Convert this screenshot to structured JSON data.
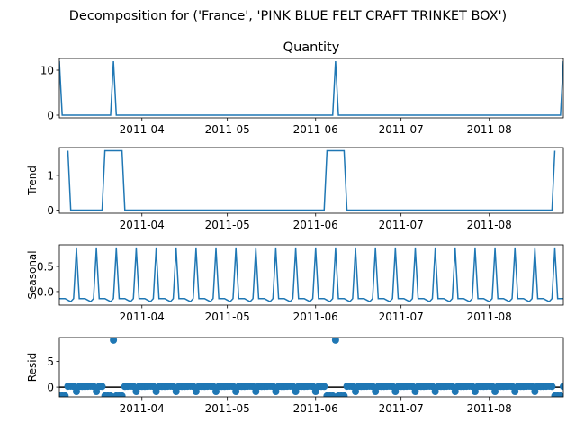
{
  "suptitle": "Decomposition for ('France', 'PINK BLUE FELT CRAFT TRINKET BOX')",
  "colors": {
    "line": "#1f77b4",
    "zero_line": "#000000",
    "axis": "#000000"
  },
  "xaxis": {
    "tick_labels": [
      "2011-04",
      "2011-05",
      "2011-06",
      "2011-07",
      "2011-08"
    ],
    "tick_dates": [
      "2011-04-01",
      "2011-05-01",
      "2011-06-01",
      "2011-07-01",
      "2011-08-01"
    ],
    "range": [
      "2011-03-03",
      "2011-08-27"
    ]
  },
  "chart_data": [
    {
      "type": "line",
      "panel": "observed",
      "title": "Quantity",
      "ylabel": "",
      "ylim": [
        -0.6,
        12.6
      ],
      "yticks": [
        0,
        10
      ],
      "spikes": [
        {
          "date": "2011-03-03",
          "value": 12
        },
        {
          "date": "2011-03-22",
          "value": 12
        },
        {
          "date": "2011-06-08",
          "value": 12
        },
        {
          "date": "2011-08-27",
          "value": 12
        }
      ],
      "baseline": 0
    },
    {
      "type": "line",
      "panel": "trend",
      "title": "",
      "ylabel": "Trend",
      "ylim": [
        -0.09,
        1.8
      ],
      "yticks": [
        0,
        1
      ],
      "x": [
        "2011-03-06",
        "2011-03-07",
        "2011-03-18",
        "2011-03-19",
        "2011-03-25",
        "2011-03-26",
        "2011-06-04",
        "2011-06-05",
        "2011-06-11",
        "2011-06-12",
        "2011-08-23",
        "2011-08-24"
      ],
      "values": [
        1.71,
        0,
        0,
        1.71,
        1.71,
        0,
        0,
        1.71,
        1.71,
        0,
        0,
        1.71
      ]
    },
    {
      "type": "line",
      "panel": "seasonal",
      "title": "",
      "ylabel": "Seasonal",
      "ylim": [
        -0.27,
        0.93
      ],
      "yticks": [
        0.0,
        0.5
      ],
      "period_days": 7,
      "first_peak": "2011-03-09",
      "weekly_pattern": [
        0.86,
        -0.14,
        -0.14,
        -0.14,
        -0.17,
        -0.2,
        -0.14
      ]
    },
    {
      "type": "scatter",
      "panel": "resid",
      "title": "",
      "ylabel": "Resid",
      "ylim": [
        -1.9,
        9.6
      ],
      "yticks": [
        0,
        5
      ],
      "outliers": [
        {
          "date": "2011-03-22",
          "value": 9.1
        },
        {
          "date": "2011-06-08",
          "value": 9.1
        }
      ],
      "negative_value": -1.71,
      "negative_ranges": [
        [
          "2011-03-03",
          "2011-03-05"
        ],
        [
          "2011-03-19",
          "2011-03-25"
        ],
        [
          "2011-06-05",
          "2011-06-11"
        ],
        [
          "2011-08-24",
          "2011-08-26"
        ]
      ],
      "weekly_values": [
        -0.86,
        0.14,
        0.14,
        0.14,
        0.17,
        0.2,
        0.14
      ],
      "first_peak": "2011-03-09"
    }
  ]
}
